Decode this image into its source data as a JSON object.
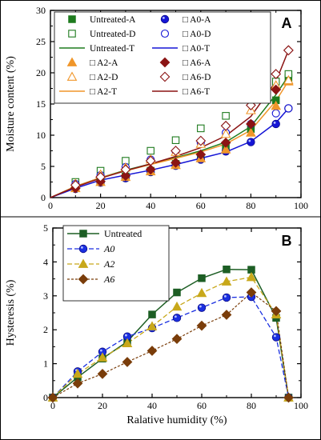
{
  "figure": {
    "colors": {
      "untreated": "#1e7b1e",
      "a0": "#1515d6",
      "a2": "#f0962a",
      "a6": "#8b1414",
      "b_untreated": "#1d5e24",
      "b_a0": "#1a2fe0",
      "b_a2": "#c8a81a",
      "b_a6": "#7a3d0a"
    }
  },
  "chart_data": [
    {
      "type": "scatter",
      "panel": "A",
      "ylabel": "Moisture content (%)",
      "xlabel": "",
      "xlim": [
        0,
        100
      ],
      "ylim": [
        0,
        30
      ],
      "xticks": [
        "0",
        "20",
        "40",
        "60",
        "80",
        "100"
      ],
      "yticks": [
        "0",
        "5",
        "10",
        "15",
        "20",
        "25",
        "30"
      ],
      "legend_position": "top-left",
      "legend": [
        [
          "Untreated-A",
          "□ A0-A"
        ],
        [
          "Untreated-D",
          "□ A0-D"
        ],
        [
          "Untreated-T",
          "□ A0-T"
        ],
        [
          "□ A2-A",
          "□ A6-A"
        ],
        [
          "□ A2-D",
          "□ A6-D"
        ],
        [
          "□ A2-T",
          "□ A6-T"
        ]
      ],
      "x": [
        10,
        20,
        30,
        40,
        50,
        60,
        70,
        80,
        90,
        95
      ],
      "series": [
        {
          "name": "Untreated-A",
          "values": [
            1.6,
            2.6,
            3.4,
            4.3,
            5.4,
            6.4,
            8.0,
            11.0,
            15.6,
            19.2
          ]
        },
        {
          "name": "Untreated-D",
          "values": [
            2.5,
            4.3,
            5.9,
            7.5,
            9.2,
            11.1,
            13.1,
            15.7,
            18.6,
            19.8
          ]
        },
        {
          "name": "A0-A",
          "values": [
            1.4,
            2.4,
            3.1,
            4.1,
            5.1,
            6.1,
            7.4,
            8.9,
            11.8,
            14.3
          ]
        },
        {
          "name": "A0-D",
          "values": [
            2.2,
            3.6,
            4.9,
            6.1,
            7.4,
            8.8,
            10.4,
            11.8,
            13.5,
            14.3
          ]
        },
        {
          "name": "A2-A",
          "values": [
            1.5,
            2.5,
            3.3,
            4.2,
            5.2,
            6.3,
            7.7,
            10.4,
            14.7,
            18.6
          ]
        },
        {
          "name": "A2-D",
          "values": [
            2.2,
            3.7,
            4.8,
            6.1,
            7.3,
            8.6,
            10.2,
            14.0,
            18.0,
            18.8
          ]
        },
        {
          "name": "A6-A",
          "values": [
            1.5,
            2.6,
            3.5,
            4.5,
            5.6,
            6.9,
            8.8,
            11.8,
            17.3,
            23.6
          ]
        },
        {
          "name": "A6-D",
          "values": [
            2.0,
            3.3,
            4.5,
            5.9,
            7.5,
            9.1,
            11.5,
            14.8,
            19.8,
            23.6
          ]
        }
      ],
      "fit_lines": [
        {
          "name": "Untreated-T",
          "values": [
            0.0,
            1.8,
            3.2,
            4.4,
            5.4,
            6.4,
            7.5,
            8.9,
            11.4,
            16.5,
            19.5
          ],
          "x": [
            0,
            10,
            20,
            30,
            40,
            50,
            60,
            70,
            80,
            90,
            95
          ]
        },
        {
          "name": "A0-T",
          "values": [
            0.0,
            1.5,
            2.8,
            3.6,
            4.4,
            5.3,
            6.3,
            7.3,
            9.0,
            12.0,
            14.3
          ],
          "x": [
            0,
            10,
            20,
            30,
            40,
            50,
            60,
            70,
            80,
            90,
            95
          ]
        },
        {
          "name": "A2-T",
          "values": [
            0.0,
            1.8,
            3.2,
            4.3,
            5.3,
            6.3,
            7.3,
            8.6,
            10.8,
            15.5,
            18.7
          ],
          "x": [
            0,
            10,
            20,
            30,
            40,
            50,
            60,
            70,
            80,
            90,
            95
          ]
        },
        {
          "name": "A6-T",
          "values": [
            0.0,
            1.7,
            3.1,
            4.3,
            5.4,
            6.6,
            8.0,
            9.9,
            13.0,
            18.6,
            23.6
          ],
          "x": [
            0,
            10,
            20,
            30,
            40,
            50,
            60,
            70,
            80,
            90,
            95
          ]
        }
      ]
    },
    {
      "type": "line",
      "panel": "B",
      "ylabel": "Hysteresis (%)",
      "xlabel": "Ralative humidity (%)",
      "xlim": [
        0,
        100
      ],
      "ylim": [
        0,
        5
      ],
      "xticks": [
        "0",
        "20",
        "40",
        "60",
        "80",
        "100"
      ],
      "yticks": [
        "0",
        "1",
        "2",
        "3",
        "4",
        "5"
      ],
      "legend_position": "top-left",
      "x": [
        0,
        10,
        20,
        30,
        40,
        50,
        60,
        70,
        80,
        90,
        95
      ],
      "series": [
        {
          "name": "Untreated",
          "values": [
            0,
            0.6,
            1.15,
            1.65,
            2.45,
            3.1,
            3.52,
            3.78,
            3.77,
            2.35,
            0
          ]
        },
        {
          "name": "A0",
          "values": [
            0,
            0.77,
            1.35,
            1.8,
            2.05,
            2.35,
            2.65,
            2.95,
            2.97,
            1.78,
            0
          ]
        },
        {
          "name": "A2",
          "values": [
            0,
            0.7,
            1.18,
            1.6,
            2.1,
            2.68,
            3.08,
            3.42,
            3.55,
            2.45,
            0
          ]
        },
        {
          "name": "A6",
          "values": [
            0,
            0.42,
            0.7,
            1.05,
            1.38,
            1.73,
            2.12,
            2.44,
            3.1,
            2.55,
            0
          ]
        }
      ]
    }
  ]
}
